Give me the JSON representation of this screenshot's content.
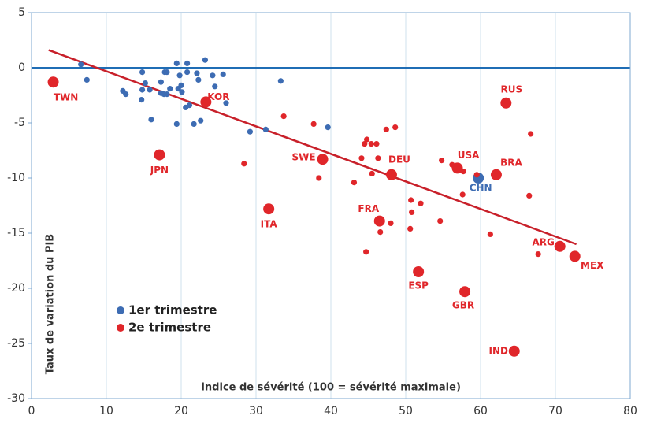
{
  "chart_data": {
    "type": "scatter",
    "xlabel": "Indice de sévérité (100 = sévérité maximale)",
    "ylabel": "Taux de variation du PIB",
    "xlim": [
      0,
      80
    ],
    "ylim": [
      -30,
      5
    ],
    "xticks": [
      0,
      10,
      20,
      30,
      40,
      50,
      60,
      70,
      80
    ],
    "yticks": [
      5,
      0,
      -5,
      -10,
      -15,
      -20,
      -25,
      -30
    ],
    "grid": true,
    "series": [
      {
        "name": "1er trimestre",
        "color": "#3d6cb3",
        "x": [
          6.6,
          7.4,
          12.2,
          12.6,
          14.8,
          14.8,
          14.7,
          15.2,
          15.8,
          16,
          17.8,
          17.3,
          17.3,
          17.7,
          18.1,
          18.1,
          18.5,
          19.4,
          19.6,
          19.8,
          20,
          20.1,
          19.4,
          20.6,
          20.8,
          20.8,
          21.1,
          21.7,
          22.1,
          22.3,
          22.6,
          23.2,
          24.2,
          24.5,
          25.6,
          26,
          29.2,
          31.3,
          33.3,
          39.6,
          59.7
        ],
        "y": [
          0.3,
          -1.1,
          -2.1,
          -2.4,
          -0.4,
          -2,
          -2.9,
          -1.4,
          -2,
          -4.7,
          -0.4,
          -1.3,
          -2.3,
          -2.4,
          -0.4,
          -2.4,
          -1.9,
          0.4,
          -1.9,
          -0.7,
          -1.6,
          -2.2,
          -5.1,
          -3.6,
          0.4,
          -0.4,
          -3.4,
          -5.1,
          -0.5,
          -1.1,
          -4.8,
          0.7,
          -0.7,
          -1.7,
          -0.6,
          -3.2,
          -5.8,
          -5.6,
          -1.2,
          -5.4,
          -10
        ],
        "labels": [
          null,
          null,
          null,
          null,
          null,
          null,
          null,
          null,
          null,
          null,
          null,
          null,
          null,
          null,
          null,
          null,
          null,
          null,
          null,
          null,
          null,
          null,
          null,
          null,
          null,
          null,
          null,
          null,
          null,
          null,
          null,
          null,
          null,
          null,
          null,
          null,
          null,
          null,
          null,
          null,
          "CHN"
        ]
      },
      {
        "name": "2e trimestre",
        "color": "#e0262a",
        "x": [
          2.9,
          17.1,
          23.3,
          31.7,
          38.9,
          48.1,
          46.5,
          51.7,
          56.9,
          57.9,
          62.1,
          63.4,
          70.6,
          72.6,
          64.5,
          28.4,
          33.7,
          37.7,
          38.4,
          43.1,
          44.1,
          44.5,
          44.8,
          45.4,
          46.1,
          46.3,
          45.5,
          47.4,
          48.6,
          46.6,
          48,
          44.7,
          50.7,
          50.8,
          50.6,
          52,
          54.6,
          54.8,
          56.2,
          57.7,
          57.6,
          59.5,
          61.3,
          66.7,
          66.5,
          67.7
        ],
        "y": [
          -1.3,
          -7.9,
          -3.1,
          -12.8,
          -8.3,
          -9.7,
          -13.9,
          -18.5,
          -9.1,
          -20.3,
          -9.7,
          -3.2,
          -16.2,
          -17.1,
          -25.7,
          -8.7,
          -4.4,
          -5.1,
          -10,
          -10.4,
          -8.2,
          -6.9,
          -6.5,
          -6.9,
          -6.9,
          -8.2,
          -9.6,
          -5.6,
          -5.4,
          -14.9,
          -14.1,
          -16.7,
          -12,
          -13.1,
          -14.6,
          -12.3,
          -13.9,
          -8.4,
          -8.8,
          -9.4,
          -11.5,
          -9.7,
          -15.1,
          -6,
          -11.6,
          -16.9
        ],
        "labels": [
          "TWN",
          "JPN",
          "KOR",
          "ITA",
          "SWE",
          "DEU",
          "FRA",
          "ESP",
          "USA",
          "GBR",
          "BRA",
          "RUS",
          "ARG",
          "MEX",
          "IND",
          null,
          null,
          null,
          null,
          null,
          null,
          null,
          null,
          null,
          null,
          null,
          null,
          null,
          null,
          null,
          null,
          null,
          null,
          null,
          null,
          null,
          null,
          null,
          null,
          null,
          null,
          null,
          null,
          null,
          null,
          null
        ]
      }
    ],
    "trend": {
      "color": "#c8202a",
      "x": [
        2.3,
        72.8
      ],
      "y": [
        1.6,
        -16
      ]
    }
  }
}
